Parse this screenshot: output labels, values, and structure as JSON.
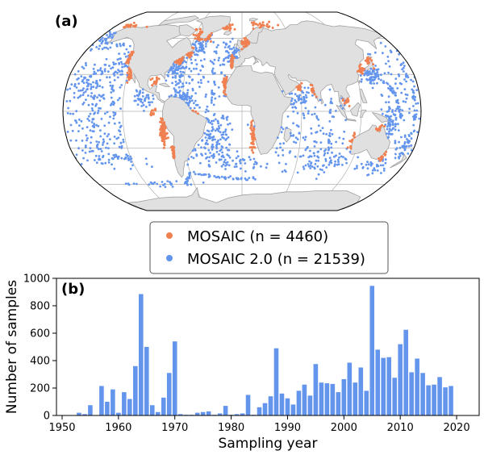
{
  "figure": {
    "panel_a_label": "(a)",
    "panel_b_label": "(b)"
  },
  "colors": {
    "mosaic": "#f08050",
    "mosaic2": "#6495ed",
    "land": "#e0e0e0",
    "coast": "#a0a0a0",
    "grid": "#b0b0b0",
    "bar": "#6495ed"
  },
  "legend": {
    "items": [
      {
        "label": "MOSAIC (n = 4460)",
        "color": "#f08050"
      },
      {
        "label": "MOSAIC 2.0 (n = 21539)",
        "color": "#6495ed"
      }
    ]
  },
  "chart_data": [
    {
      "type": "scatter",
      "projection": "robinson",
      "panel": "(a)",
      "series": [
        {
          "name": "MOSAIC (n = 4460)",
          "color": "#f08050"
        },
        {
          "name": "MOSAIC 2.0 (n = 21539)",
          "color": "#6495ed"
        }
      ],
      "grid": true
    },
    {
      "type": "bar",
      "panel": "(b)",
      "xlabel": "Sampling year",
      "ylabel": "Number of samples",
      "xlim": [
        1949,
        2024
      ],
      "ylim": [
        0,
        1000
      ],
      "xticks": [
        1950,
        1960,
        1970,
        1980,
        1990,
        2000,
        2010,
        2020
      ],
      "yticks": [
        0,
        200,
        400,
        600,
        800,
        1000
      ],
      "x": [
        1953,
        1954,
        1955,
        1957,
        1958,
        1959,
        1960,
        1961,
        1962,
        1963,
        1964,
        1965,
        1966,
        1967,
        1968,
        1969,
        1970,
        1971,
        1972,
        1973,
        1974,
        1975,
        1976,
        1977,
        1978,
        1979,
        1980,
        1981,
        1982,
        1983,
        1984,
        1985,
        1986,
        1987,
        1988,
        1989,
        1990,
        1991,
        1992,
        1993,
        1994,
        1995,
        1996,
        1997,
        1998,
        1999,
        2000,
        2001,
        2002,
        2003,
        2004,
        2005,
        2006,
        2007,
        2008,
        2009,
        2010,
        2011,
        2012,
        2013,
        2014,
        2015,
        2016,
        2017,
        2018,
        2019,
        2020
      ],
      "values": [
        20,
        10,
        75,
        215,
        100,
        190,
        20,
        170,
        120,
        360,
        885,
        500,
        75,
        25,
        130,
        310,
        540,
        10,
        5,
        5,
        20,
        25,
        30,
        5,
        15,
        70,
        5,
        10,
        15,
        150,
        5,
        60,
        90,
        140,
        490,
        160,
        125,
        80,
        180,
        225,
        145,
        375,
        240,
        235,
        230,
        170,
        265,
        385,
        240,
        350,
        180,
        945,
        480,
        420,
        425,
        275,
        520,
        625,
        315,
        415,
        310,
        220,
        225,
        280,
        205,
        215,
        0
      ]
    }
  ]
}
